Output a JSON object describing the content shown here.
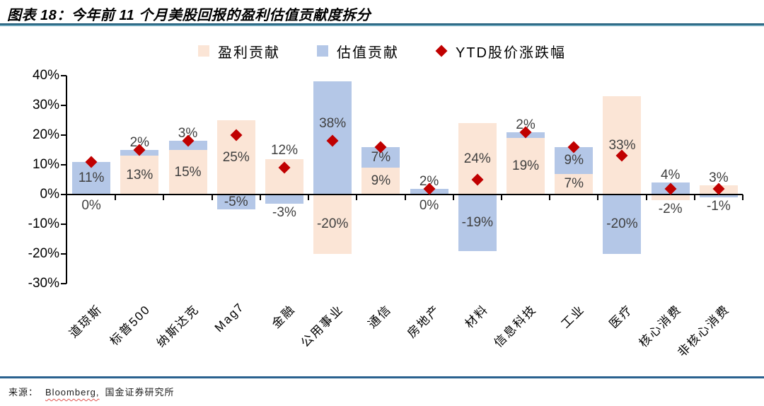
{
  "header": {
    "title": "图表 18：今年前 11 个月美股回报的盈利估值贡献度拆分"
  },
  "footer": {
    "source_prefix": "来源：",
    "source_bloomberg": "Bloomberg,",
    "source_rest": "国金证券研究所"
  },
  "chart_data": {
    "type": "bar",
    "stacked": true,
    "title": "今年前 11 个月美股回报的盈利估值贡献度拆分",
    "categories": [
      "道琼斯",
      "标普500",
      "纳斯达克",
      "Mag7",
      "金融",
      "公用事业",
      "通信",
      "房地产",
      "材料",
      "信息科技",
      "工业",
      "医疗",
      "核心消费",
      "非核心消费"
    ],
    "series": [
      {
        "name": "盈利贡献",
        "color": "#FBE5D6",
        "values": [
          0,
          13,
          15,
          25,
          12,
          -20,
          9,
          0,
          24,
          19,
          7,
          33,
          -2,
          3
        ]
      },
      {
        "name": "估值贡献",
        "color": "#B4C7E7",
        "values": [
          11,
          2,
          3,
          -5,
          -3,
          38,
          7,
          2,
          -19,
          2,
          9,
          -20,
          4,
          -1
        ]
      }
    ],
    "markers": {
      "name": "YTD股价涨跌幅",
      "color": "#C00000",
      "values": [
        11,
        15,
        18,
        20,
        9,
        18,
        16,
        2,
        5,
        21,
        16,
        13,
        2,
        2
      ]
    },
    "value_suffix": "%",
    "ylim": [
      -30,
      40
    ],
    "yticks": [
      {
        "value": 40,
        "label": "40%"
      },
      {
        "value": 30,
        "label": "30%"
      },
      {
        "value": 20,
        "label": "20%"
      },
      {
        "value": 10,
        "label": "10%"
      },
      {
        "value": 0,
        "label": "0%"
      },
      {
        "value": -10,
        "label": "-10%"
      },
      {
        "value": -20,
        "label": "-20%"
      },
      {
        "value": -30,
        "label": "-30%"
      }
    ],
    "grid": false,
    "legend_position": "top",
    "label_color": "#3F3F3F",
    "axis_color": "#000000"
  }
}
